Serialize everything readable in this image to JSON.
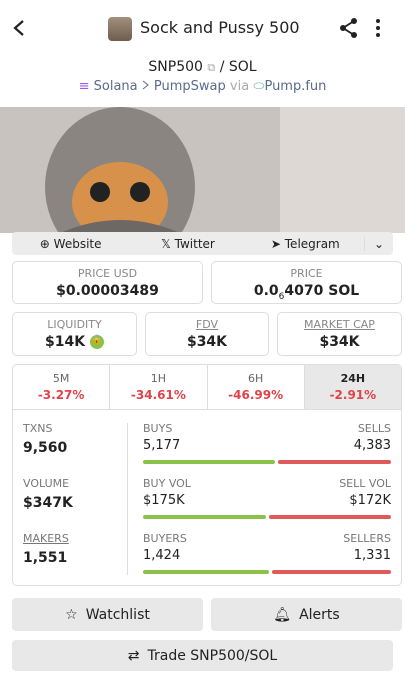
{
  "header": {
    "title": "Sock and Pussy 500"
  },
  "pair": {
    "base": "SNP500",
    "quote": "/ SOL",
    "chain": "Solana",
    "dex": "PumpSwap",
    "via": "via",
    "launchpad": "Pump.fun"
  },
  "links": [
    "Website",
    "Twitter",
    "Telegram"
  ],
  "prices": {
    "usd_label": "PRICE USD",
    "usd_value": "$0.00003489",
    "native_label": "PRICE",
    "native_prefix": "0.0",
    "native_zeros": "6",
    "native_rest": "4070 SOL"
  },
  "metrics": [
    {
      "label": "LIQUIDITY",
      "value": "$14K"
    },
    {
      "label": "FDV",
      "value": "$34K"
    },
    {
      "label": "MARKET CAP",
      "value": "$34K"
    }
  ],
  "tabs": [
    {
      "label": "5M",
      "change": "-3.27%"
    },
    {
      "label": "1H",
      "change": "-34.61%"
    },
    {
      "label": "6H",
      "change": "-46.99%"
    },
    {
      "label": "24H",
      "change": "-2.91%"
    }
  ],
  "stats": [
    {
      "label": "TXNS",
      "value": "9,560",
      "left_label": "BUYS",
      "left": 5177,
      "left_text": "5,177",
      "right_label": "SELLS",
      "right": 4383,
      "right_text": "4,383"
    },
    {
      "label": "VOLUME",
      "value": "$347K",
      "left_label": "BUY VOL",
      "left": 175,
      "left_text": "$175K",
      "right_label": "SELL VOL",
      "right": 172,
      "right_text": "$172K"
    },
    {
      "label": "MAKERS",
      "value": "1,551",
      "left_label": "BUYERS",
      "left": 1424,
      "left_text": "1,424",
      "right_label": "SELLERS",
      "right": 1331,
      "right_text": "1,331"
    }
  ],
  "buttons": {
    "watchlist": "Watchlist",
    "alerts": "Alerts",
    "trade": "Trade SNP500/SOL"
  }
}
